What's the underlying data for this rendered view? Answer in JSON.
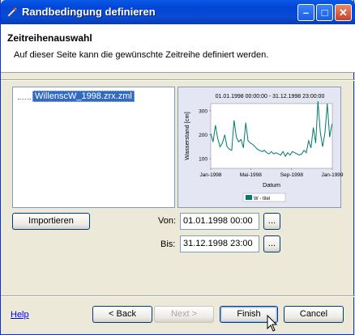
{
  "window": {
    "title": "Randbedingung definieren"
  },
  "header": {
    "title": "Zeitreihenauswahl",
    "description": "Auf dieser Seite kann die gewünschte Zeitreihe definiert werden."
  },
  "tree": {
    "items": [
      {
        "label": "WillenscW_1998.zrx.zml"
      }
    ]
  },
  "chart_data": {
    "type": "line",
    "title": "01.01.1998 00:00:00 - 31.12.1998 23:00:00",
    "xlabel": "Datum",
    "ylabel": "Wasserstand [cm]",
    "x_ticks": [
      "Jan-1998",
      "Mai-1998",
      "Sep-1998",
      "Jan-1999"
    ],
    "y_ticks": [
      100,
      200,
      300
    ],
    "ylim": [
      60,
      330
    ],
    "xlim": [
      "1998-01-01",
      "1999-01-01"
    ],
    "legend": {
      "placement": "bottom",
      "label": "W - titel"
    },
    "series": [
      {
        "name": "W - titel",
        "color": "#007a70",
        "x": [
          "1998-01-01",
          "1998-01-08",
          "1998-01-15",
          "1998-01-22",
          "1998-01-29",
          "1998-02-05",
          "1998-02-12",
          "1998-02-19",
          "1998-02-26",
          "1998-03-05",
          "1998-03-12",
          "1998-03-19",
          "1998-03-26",
          "1998-04-02",
          "1998-04-09",
          "1998-04-16",
          "1998-04-23",
          "1998-04-30",
          "1998-05-07",
          "1998-05-14",
          "1998-05-21",
          "1998-05-28",
          "1998-06-04",
          "1998-06-11",
          "1998-06-18",
          "1998-06-25",
          "1998-07-02",
          "1998-07-09",
          "1998-07-16",
          "1998-07-23",
          "1998-07-30",
          "1998-08-06",
          "1998-08-13",
          "1998-08-20",
          "1998-08-27",
          "1998-09-03",
          "1998-09-10",
          "1998-09-17",
          "1998-09-24",
          "1998-10-01",
          "1998-10-08",
          "1998-10-15",
          "1998-10-22",
          "1998-10-29",
          "1998-11-05",
          "1998-11-12",
          "1998-11-19",
          "1998-11-26",
          "1998-12-03",
          "1998-12-10",
          "1998-12-17",
          "1998-12-24",
          "1998-12-31"
        ],
        "y": [
          205,
          170,
          240,
          185,
          150,
          165,
          200,
          150,
          140,
          135,
          260,
          190,
          170,
          180,
          145,
          250,
          175,
          165,
          160,
          150,
          140,
          135,
          130,
          135,
          125,
          120,
          130,
          120,
          125,
          120,
          115,
          130,
          110,
          125,
          115,
          130,
          125,
          120,
          115,
          120,
          135,
          125,
          175,
          145,
          230,
          165,
          340,
          210,
          150,
          210,
          330,
          190,
          245
        ]
      }
    ]
  },
  "buttons": {
    "import": "Importieren",
    "back": "< Back",
    "next": "Next >",
    "finish": "Finish",
    "cancel": "Cancel",
    "browse": "..."
  },
  "fields": {
    "from_label": "Von:",
    "from_value": "01.01.1998 00:00",
    "to_label": "Bis:",
    "to_value": "31.12.1998 23:00"
  },
  "help_link": "Help"
}
